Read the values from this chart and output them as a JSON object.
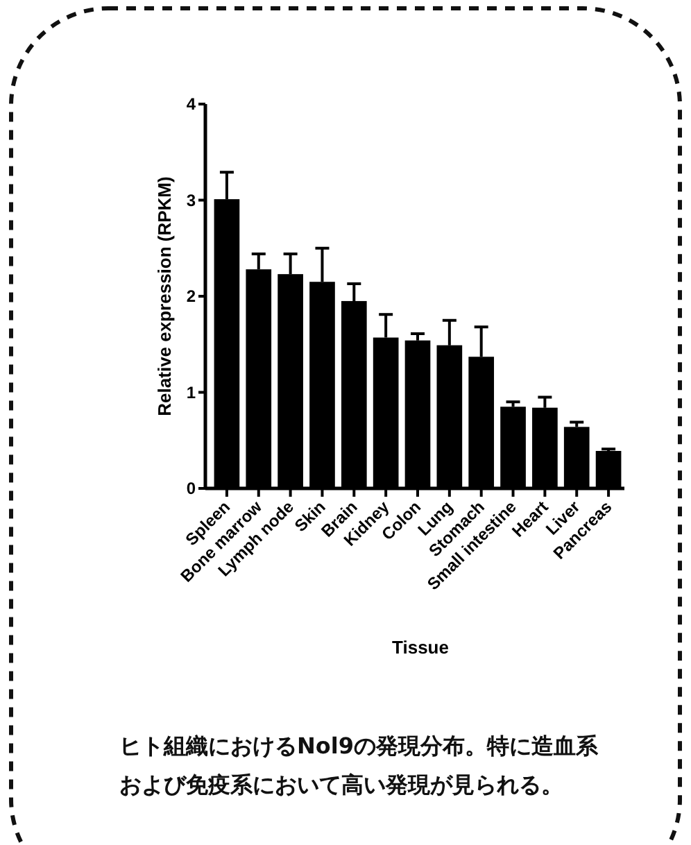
{
  "chart_data": {
    "type": "bar",
    "xlabel": "Tissue",
    "ylabel": "Relative expression (RPKM)",
    "categories": [
      "Spleen",
      "Bone marrow",
      "Lymph node",
      "Skin",
      "Brain",
      "Kidney",
      "Colon",
      "Lung",
      "Stomach",
      "Small intestine",
      "Heart",
      "Liver",
      "Pancreas"
    ],
    "values": [
      3.01,
      2.28,
      2.23,
      2.15,
      1.95,
      1.57,
      1.54,
      1.49,
      1.37,
      0.85,
      0.84,
      0.64,
      0.39
    ],
    "errors": [
      [
        3.01,
        3.29
      ],
      [
        2.28,
        2.44
      ],
      [
        2.23,
        2.44
      ],
      [
        2.15,
        2.5
      ],
      [
        1.95,
        2.13
      ],
      [
        1.57,
        1.81
      ],
      [
        1.54,
        1.61
      ],
      [
        1.49,
        1.75
      ],
      [
        1.37,
        1.68
      ],
      [
        0.85,
        0.9
      ],
      [
        0.84,
        0.95
      ],
      [
        0.64,
        0.69
      ],
      [
        0.39,
        0.41
      ]
    ],
    "color": "#000000",
    "ylim": [
      0,
      4
    ],
    "yticks": [
      0,
      1,
      2,
      3,
      4
    ],
    "annotations": [
      "ヒト組織におけるNol9の発現分布。特に造血系および免疫系において高い発現が見られる。"
    ]
  }
}
